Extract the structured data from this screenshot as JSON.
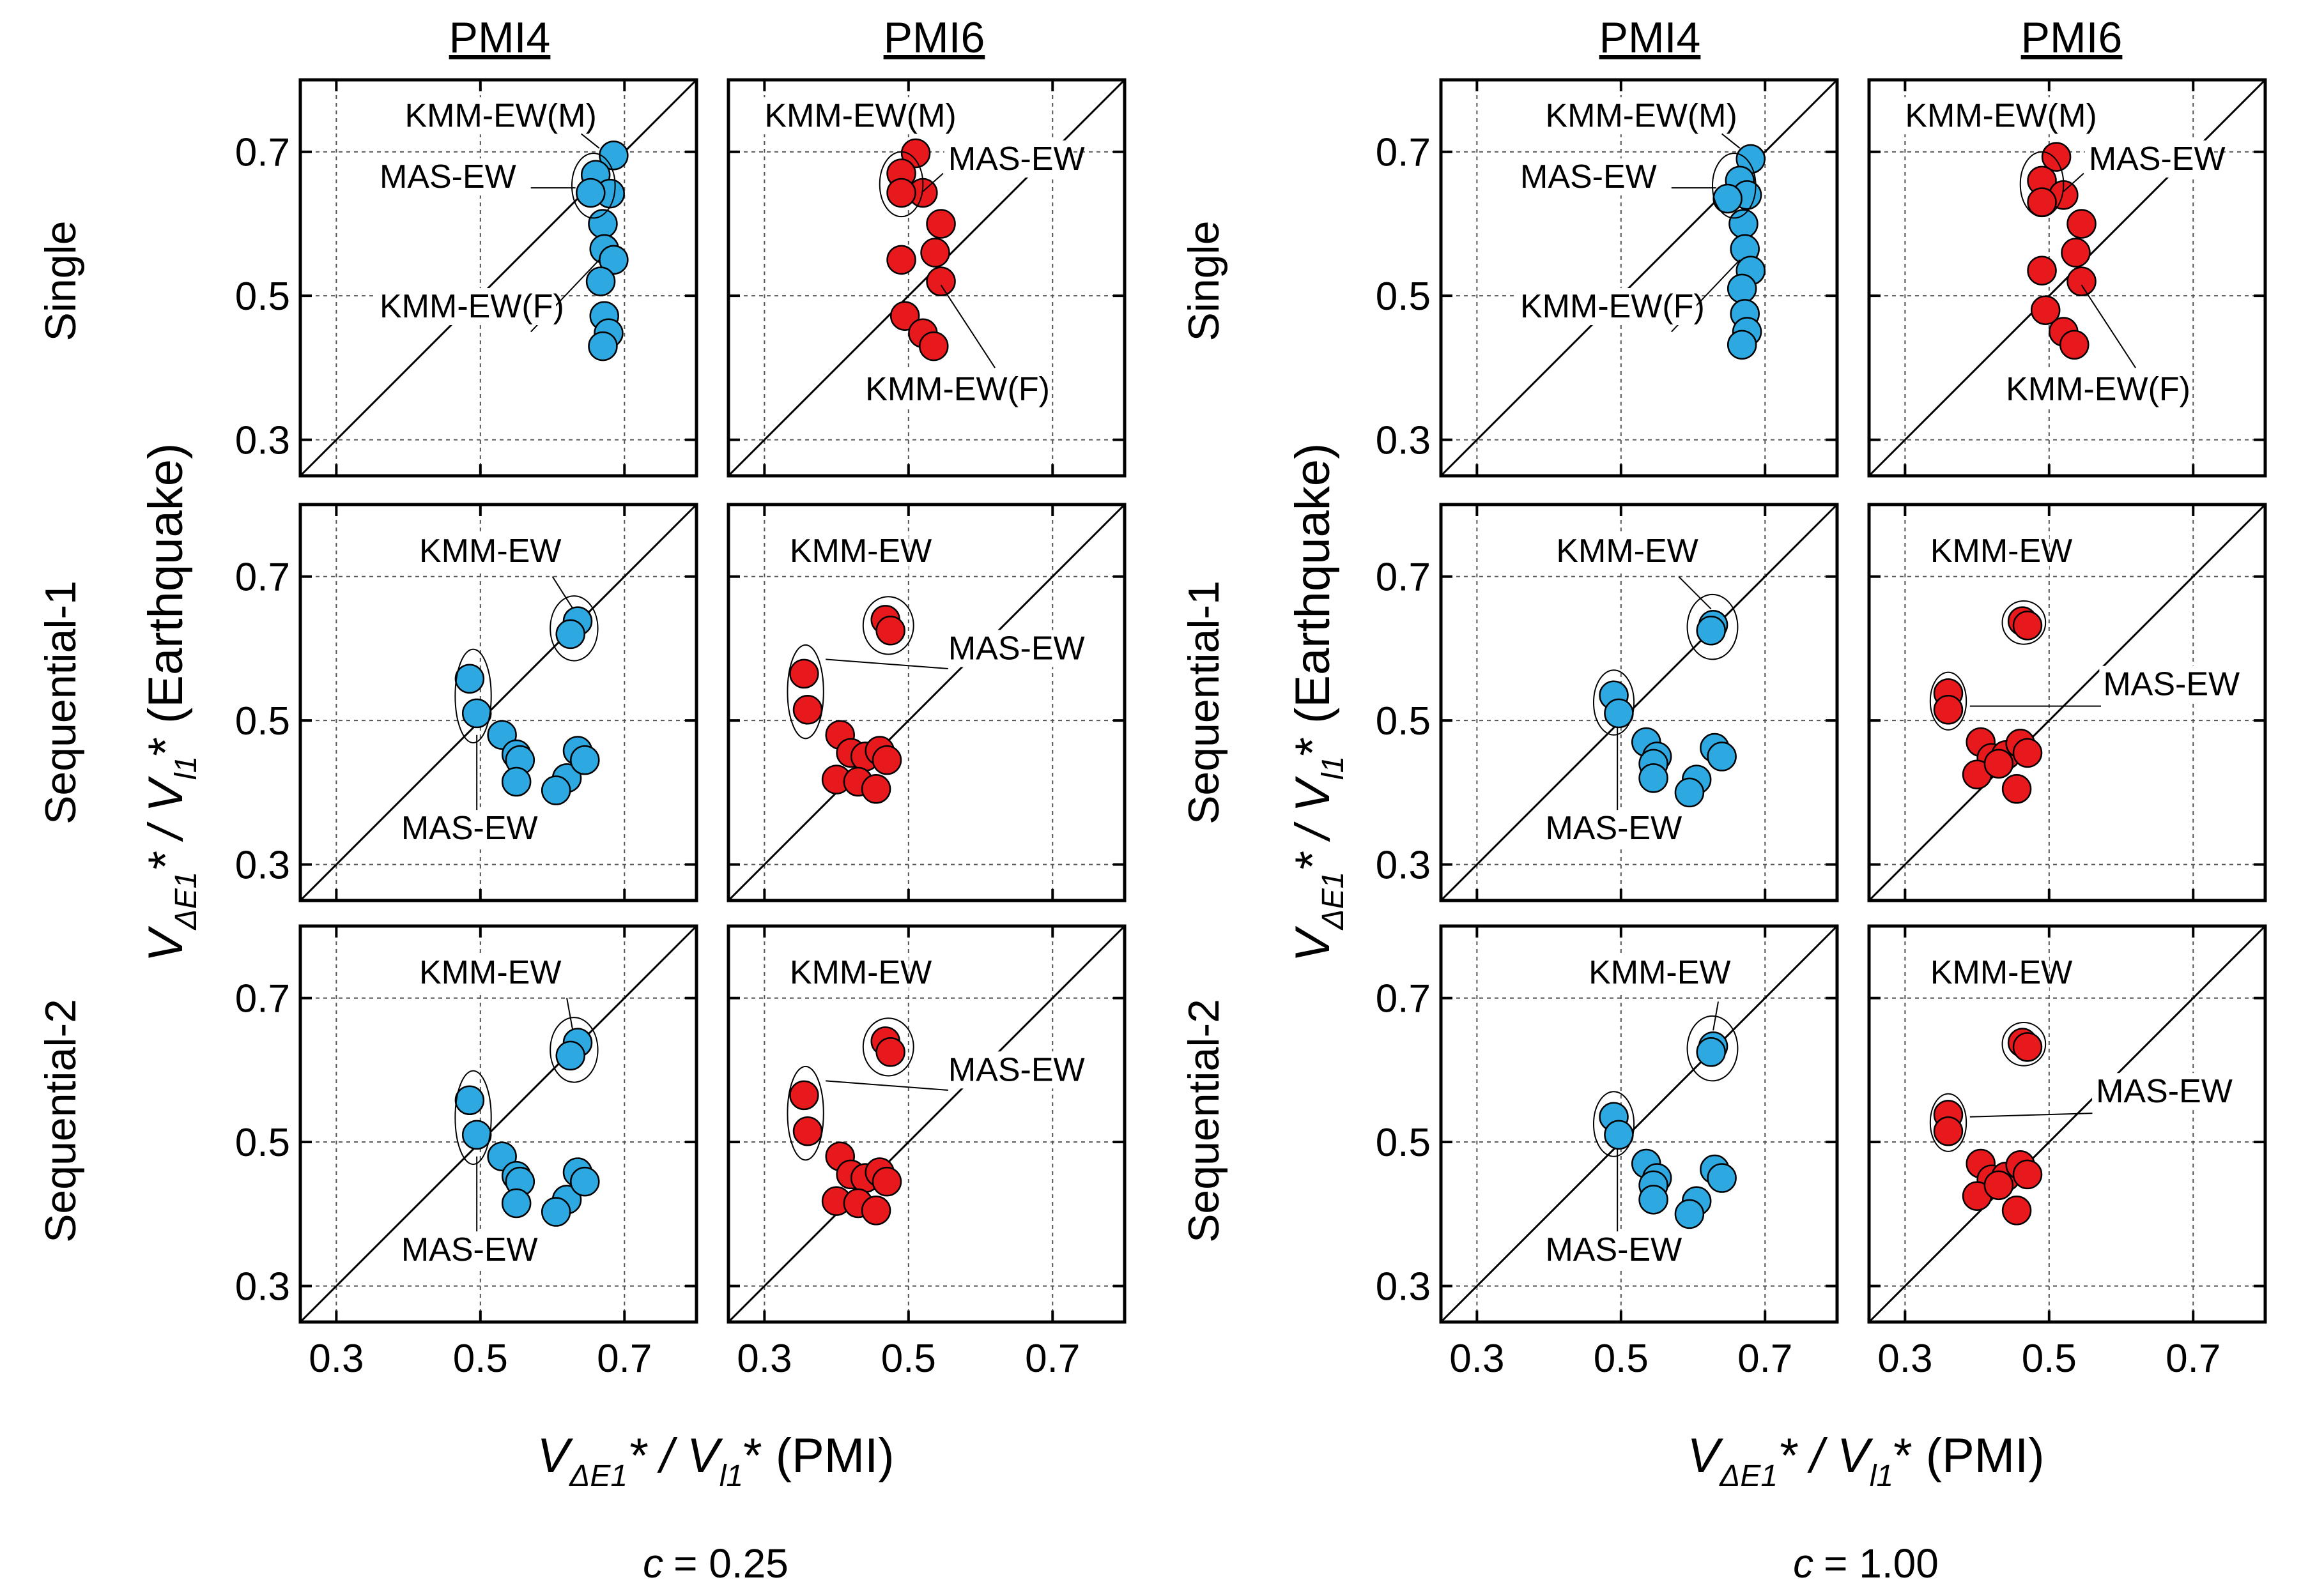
{
  "figure": {
    "left_group": {
      "footer_prefix": "c",
      "footer_value": "= 0.25",
      "xlabel": {
        "v": "V",
        "sub1": "ΔE1",
        "mid": "* / V",
        "sub2": "l1",
        "tail": "* (PMI)"
      }
    },
    "right_group": {
      "footer_prefix": "c",
      "footer_value": "= 1.00",
      "xlabel": {
        "v": "V",
        "sub1": "ΔE1",
        "mid": "* / V",
        "sub2": "l1",
        "tail": "* (PMI)"
      }
    },
    "ylabel": {
      "v": "V",
      "sub1": "ΔE1",
      "mid": "* / V",
      "sub2": "l1",
      "tail": "* (Earthquake)"
    },
    "column_titles": [
      "PMI4",
      "PMI6"
    ],
    "row_titles": [
      "Single",
      "Sequential-1",
      "Sequential-2"
    ],
    "series_colors": {
      "PMI4": "#2ea8e0",
      "PMI6": "#e8191c"
    }
  },
  "chart_data": [
    {
      "type": "scatter",
      "group": "c = 0.25",
      "column": "PMI4",
      "row": "Single",
      "xlim": [
        0.25,
        0.8
      ],
      "ylim": [
        0.25,
        0.8
      ],
      "xticks": [
        "0.3",
        "0.5",
        "0.7"
      ],
      "yticks": [
        "0.3",
        "0.5",
        "0.7"
      ],
      "grid": true,
      "diagonal": true,
      "color": "#2ea8e0",
      "points": [
        [
          0.685,
          0.695
        ],
        [
          0.66,
          0.668
        ],
        [
          0.68,
          0.642
        ],
        [
          0.653,
          0.643
        ],
        [
          0.67,
          0.6
        ],
        [
          0.672,
          0.565
        ],
        [
          0.685,
          0.55
        ],
        [
          0.667,
          0.52
        ],
        [
          0.672,
          0.472
        ],
        [
          0.678,
          0.448
        ],
        [
          0.67,
          0.43
        ]
      ],
      "annotations": [
        "KMM-EW(M)",
        "MAS-EW",
        "KMM-EW(F)"
      ]
    },
    {
      "type": "scatter",
      "group": "c = 0.25",
      "column": "PMI6",
      "row": "Single",
      "xlim": [
        0.25,
        0.8
      ],
      "ylim": [
        0.25,
        0.8
      ],
      "xticks": [
        "0.3",
        "0.5",
        "0.7"
      ],
      "yticks": [
        "0.3",
        "0.5",
        "0.7"
      ],
      "grid": true,
      "diagonal": true,
      "color": "#e8191c",
      "points": [
        [
          0.51,
          0.698
        ],
        [
          0.49,
          0.67
        ],
        [
          0.52,
          0.643
        ],
        [
          0.49,
          0.643
        ],
        [
          0.545,
          0.6
        ],
        [
          0.537,
          0.56
        ],
        [
          0.49,
          0.55
        ],
        [
          0.545,
          0.52
        ],
        [
          0.495,
          0.472
        ],
        [
          0.52,
          0.448
        ],
        [
          0.535,
          0.43
        ]
      ],
      "annotations": [
        "KMM-EW(M)",
        "MAS-EW",
        "KMM-EW(F)"
      ]
    },
    {
      "type": "scatter",
      "group": "c = 0.25",
      "column": "PMI4",
      "row": "Sequential-1",
      "xlim": [
        0.25,
        0.8
      ],
      "ylim": [
        0.25,
        0.8
      ],
      "xticks": [
        "0.3",
        "0.5",
        "0.7"
      ],
      "yticks": [
        "0.3",
        "0.5",
        "0.7"
      ],
      "grid": true,
      "diagonal": true,
      "color": "#2ea8e0",
      "points": [
        [
          0.635,
          0.638
        ],
        [
          0.625,
          0.62
        ],
        [
          0.485,
          0.558
        ],
        [
          0.495,
          0.51
        ],
        [
          0.53,
          0.48
        ],
        [
          0.55,
          0.453
        ],
        [
          0.555,
          0.445
        ],
        [
          0.55,
          0.415
        ],
        [
          0.62,
          0.42
        ],
        [
          0.605,
          0.403
        ],
        [
          0.635,
          0.458
        ],
        [
          0.645,
          0.445
        ]
      ],
      "annotations": [
        "KMM-EW",
        "MAS-EW"
      ]
    },
    {
      "type": "scatter",
      "group": "c = 0.25",
      "column": "PMI6",
      "row": "Sequential-1",
      "xlim": [
        0.25,
        0.8
      ],
      "ylim": [
        0.25,
        0.8
      ],
      "xticks": [
        "0.3",
        "0.5",
        "0.7"
      ],
      "yticks": [
        "0.3",
        "0.5",
        "0.7"
      ],
      "grid": true,
      "diagonal": true,
      "color": "#e8191c",
      "points": [
        [
          0.468,
          0.64
        ],
        [
          0.475,
          0.625
        ],
        [
          0.355,
          0.565
        ],
        [
          0.36,
          0.515
        ],
        [
          0.405,
          0.48
        ],
        [
          0.42,
          0.455
        ],
        [
          0.44,
          0.45
        ],
        [
          0.46,
          0.458
        ],
        [
          0.47,
          0.445
        ],
        [
          0.4,
          0.418
        ],
        [
          0.43,
          0.415
        ],
        [
          0.455,
          0.405
        ]
      ],
      "annotations": [
        "KMM-EW",
        "MAS-EW"
      ]
    },
    {
      "type": "scatter",
      "group": "c = 0.25",
      "column": "PMI4",
      "row": "Sequential-2",
      "xlim": [
        0.25,
        0.8
      ],
      "ylim": [
        0.25,
        0.8
      ],
      "xticks": [
        "0.3",
        "0.5",
        "0.7"
      ],
      "yticks": [
        "0.3",
        "0.5",
        "0.7"
      ],
      "grid": true,
      "diagonal": true,
      "color": "#2ea8e0",
      "points": [
        [
          0.635,
          0.638
        ],
        [
          0.625,
          0.62
        ],
        [
          0.485,
          0.558
        ],
        [
          0.495,
          0.51
        ],
        [
          0.53,
          0.48
        ],
        [
          0.55,
          0.453
        ],
        [
          0.555,
          0.445
        ],
        [
          0.55,
          0.415
        ],
        [
          0.62,
          0.42
        ],
        [
          0.605,
          0.403
        ],
        [
          0.635,
          0.458
        ],
        [
          0.645,
          0.445
        ]
      ],
      "annotations": [
        "KMM-EW",
        "MAS-EW"
      ]
    },
    {
      "type": "scatter",
      "group": "c = 0.25",
      "column": "PMI6",
      "row": "Sequential-2",
      "xlim": [
        0.25,
        0.8
      ],
      "ylim": [
        0.25,
        0.8
      ],
      "xticks": [
        "0.3",
        "0.5",
        "0.7"
      ],
      "yticks": [
        "0.3",
        "0.5",
        "0.7"
      ],
      "grid": true,
      "diagonal": true,
      "color": "#e8191c",
      "points": [
        [
          0.468,
          0.64
        ],
        [
          0.475,
          0.625
        ],
        [
          0.355,
          0.565
        ],
        [
          0.36,
          0.515
        ],
        [
          0.405,
          0.48
        ],
        [
          0.42,
          0.455
        ],
        [
          0.44,
          0.45
        ],
        [
          0.46,
          0.458
        ],
        [
          0.47,
          0.445
        ],
        [
          0.4,
          0.418
        ],
        [
          0.43,
          0.415
        ],
        [
          0.455,
          0.405
        ]
      ],
      "annotations": [
        "KMM-EW",
        "MAS-EW"
      ]
    },
    {
      "type": "scatter",
      "group": "c = 1.00",
      "column": "PMI4",
      "row": "Single",
      "xlim": [
        0.25,
        0.8
      ],
      "ylim": [
        0.25,
        0.8
      ],
      "xticks": [
        "0.3",
        "0.5",
        "0.7"
      ],
      "yticks": [
        "0.3",
        "0.5",
        "0.7"
      ],
      "grid": true,
      "diagonal": true,
      "color": "#2ea8e0",
      "points": [
        [
          0.68,
          0.69
        ],
        [
          0.665,
          0.66
        ],
        [
          0.675,
          0.64
        ],
        [
          0.648,
          0.635
        ],
        [
          0.67,
          0.6
        ],
        [
          0.672,
          0.565
        ],
        [
          0.68,
          0.535
        ],
        [
          0.668,
          0.51
        ],
        [
          0.672,
          0.475
        ],
        [
          0.675,
          0.45
        ],
        [
          0.668,
          0.432
        ]
      ],
      "annotations": [
        "KMM-EW(M)",
        "MAS-EW",
        "KMM-EW(F)"
      ]
    },
    {
      "type": "scatter",
      "group": "c = 1.00",
      "column": "PMI6",
      "row": "Single",
      "xlim": [
        0.25,
        0.8
      ],
      "ylim": [
        0.25,
        0.8
      ],
      "xticks": [
        "0.3",
        "0.5",
        "0.7"
      ],
      "yticks": [
        "0.3",
        "0.5",
        "0.7"
      ],
      "grid": true,
      "diagonal": true,
      "color": "#e8191c",
      "points": [
        [
          0.51,
          0.693
        ],
        [
          0.49,
          0.66
        ],
        [
          0.52,
          0.64
        ],
        [
          0.49,
          0.63
        ],
        [
          0.545,
          0.6
        ],
        [
          0.537,
          0.56
        ],
        [
          0.49,
          0.535
        ],
        [
          0.545,
          0.52
        ],
        [
          0.495,
          0.48
        ],
        [
          0.52,
          0.45
        ],
        [
          0.535,
          0.432
        ]
      ],
      "annotations": [
        "KMM-EW(M)",
        "MAS-EW",
        "KMM-EW(F)"
      ]
    },
    {
      "type": "scatter",
      "group": "c = 1.00",
      "column": "PMI4",
      "row": "Sequential-1",
      "xlim": [
        0.25,
        0.8
      ],
      "ylim": [
        0.25,
        0.8
      ],
      "xticks": [
        "0.3",
        "0.5",
        "0.7"
      ],
      "yticks": [
        "0.3",
        "0.5",
        "0.7"
      ],
      "grid": true,
      "diagonal": true,
      "color": "#2ea8e0",
      "points": [
        [
          0.628,
          0.633
        ],
        [
          0.625,
          0.625
        ],
        [
          0.49,
          0.535
        ],
        [
          0.497,
          0.51
        ],
        [
          0.535,
          0.47
        ],
        [
          0.55,
          0.45
        ],
        [
          0.545,
          0.44
        ],
        [
          0.545,
          0.42
        ],
        [
          0.605,
          0.418
        ],
        [
          0.595,
          0.4
        ],
        [
          0.63,
          0.462
        ],
        [
          0.64,
          0.45
        ]
      ],
      "annotations": [
        "KMM-EW",
        "MAS-EW"
      ]
    },
    {
      "type": "scatter",
      "group": "c = 1.00",
      "column": "PMI6",
      "row": "Sequential-1",
      "xlim": [
        0.25,
        0.8
      ],
      "ylim": [
        0.25,
        0.8
      ],
      "xticks": [
        "0.3",
        "0.5",
        "0.7"
      ],
      "yticks": [
        "0.3",
        "0.5",
        "0.7"
      ],
      "grid": true,
      "diagonal": true,
      "color": "#e8191c",
      "points": [
        [
          0.463,
          0.638
        ],
        [
          0.47,
          0.632
        ],
        [
          0.36,
          0.538
        ],
        [
          0.36,
          0.515
        ],
        [
          0.405,
          0.47
        ],
        [
          0.42,
          0.448
        ],
        [
          0.44,
          0.452
        ],
        [
          0.46,
          0.468
        ],
        [
          0.47,
          0.455
        ],
        [
          0.4,
          0.425
        ],
        [
          0.43,
          0.44
        ],
        [
          0.455,
          0.405
        ]
      ],
      "annotations": [
        "KMM-EW",
        "MAS-EW"
      ]
    },
    {
      "type": "scatter",
      "group": "c = 1.00",
      "column": "PMI4",
      "row": "Sequential-2",
      "xlim": [
        0.25,
        0.8
      ],
      "ylim": [
        0.25,
        0.8
      ],
      "xticks": [
        "0.3",
        "0.5",
        "0.7"
      ],
      "yticks": [
        "0.3",
        "0.5",
        "0.7"
      ],
      "grid": true,
      "diagonal": true,
      "color": "#2ea8e0",
      "points": [
        [
          0.628,
          0.633
        ],
        [
          0.625,
          0.625
        ],
        [
          0.49,
          0.535
        ],
        [
          0.497,
          0.51
        ],
        [
          0.535,
          0.47
        ],
        [
          0.55,
          0.45
        ],
        [
          0.545,
          0.44
        ],
        [
          0.545,
          0.42
        ],
        [
          0.605,
          0.418
        ],
        [
          0.595,
          0.4
        ],
        [
          0.63,
          0.462
        ],
        [
          0.64,
          0.45
        ]
      ],
      "annotations": [
        "KMM-EW",
        "MAS-EW"
      ]
    },
    {
      "type": "scatter",
      "group": "c = 1.00",
      "column": "PMI6",
      "row": "Sequential-2",
      "xlim": [
        0.25,
        0.8
      ],
      "ylim": [
        0.25,
        0.8
      ],
      "xticks": [
        "0.3",
        "0.5",
        "0.7"
      ],
      "yticks": [
        "0.3",
        "0.5",
        "0.7"
      ],
      "grid": true,
      "diagonal": true,
      "color": "#e8191c",
      "points": [
        [
          0.463,
          0.638
        ],
        [
          0.47,
          0.632
        ],
        [
          0.36,
          0.538
        ],
        [
          0.36,
          0.515
        ],
        [
          0.405,
          0.47
        ],
        [
          0.42,
          0.448
        ],
        [
          0.44,
          0.452
        ],
        [
          0.46,
          0.468
        ],
        [
          0.47,
          0.455
        ],
        [
          0.4,
          0.425
        ],
        [
          0.43,
          0.44
        ],
        [
          0.455,
          0.405
        ]
      ],
      "annotations": [
        "KMM-EW",
        "MAS-EW"
      ]
    }
  ]
}
